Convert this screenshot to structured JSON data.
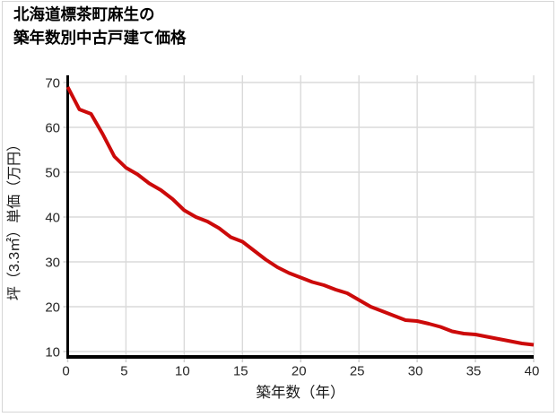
{
  "title": {
    "line1": "北海道標茶町麻生の",
    "line2": "築年数別中古戸建て価格"
  },
  "chart_data": {
    "type": "line",
    "title": "北海道標茶町麻生の築年数別中古戸建て価格",
    "xlabel": "築年数（年）",
    "ylabel": "坪（3.3㎡）単価（万円）",
    "x": [
      0,
      1,
      2,
      3,
      4,
      5,
      6,
      7,
      8,
      9,
      10,
      11,
      12,
      13,
      14,
      15,
      16,
      17,
      18,
      19,
      20,
      21,
      22,
      23,
      24,
      25,
      26,
      27,
      28,
      29,
      30,
      31,
      32,
      33,
      34,
      35,
      36,
      37,
      38,
      39,
      40
    ],
    "values": [
      69,
      64,
      63,
      58.5,
      53.5,
      51,
      49.5,
      47.5,
      46,
      44,
      41.5,
      40,
      39,
      37.5,
      35.5,
      34.5,
      32.5,
      30.5,
      28.8,
      27.5,
      26.5,
      25.5,
      24.8,
      23.8,
      23,
      21.5,
      20,
      19,
      18,
      17,
      16.8,
      16.2,
      15.5,
      14.5,
      14,
      13.8,
      13.3,
      12.8,
      12.3,
      11.8,
      11.5
    ],
    "x_ticks": [
      0,
      5,
      10,
      15,
      20,
      25,
      30,
      35,
      40
    ],
    "y_ticks": [
      10,
      20,
      30,
      40,
      50,
      60,
      70
    ],
    "xlim": [
      0,
      40
    ],
    "ylim": [
      8,
      72
    ],
    "grid": true,
    "legend_position": "none",
    "colors": {
      "line": "#cc0a0a",
      "axis": "#000000",
      "grid": "#dadada",
      "tick": "#cfcfcf",
      "tick_label": "#262626",
      "title": "#000000",
      "frame_border": "#d6d6d6",
      "background": "#ffffff"
    }
  }
}
